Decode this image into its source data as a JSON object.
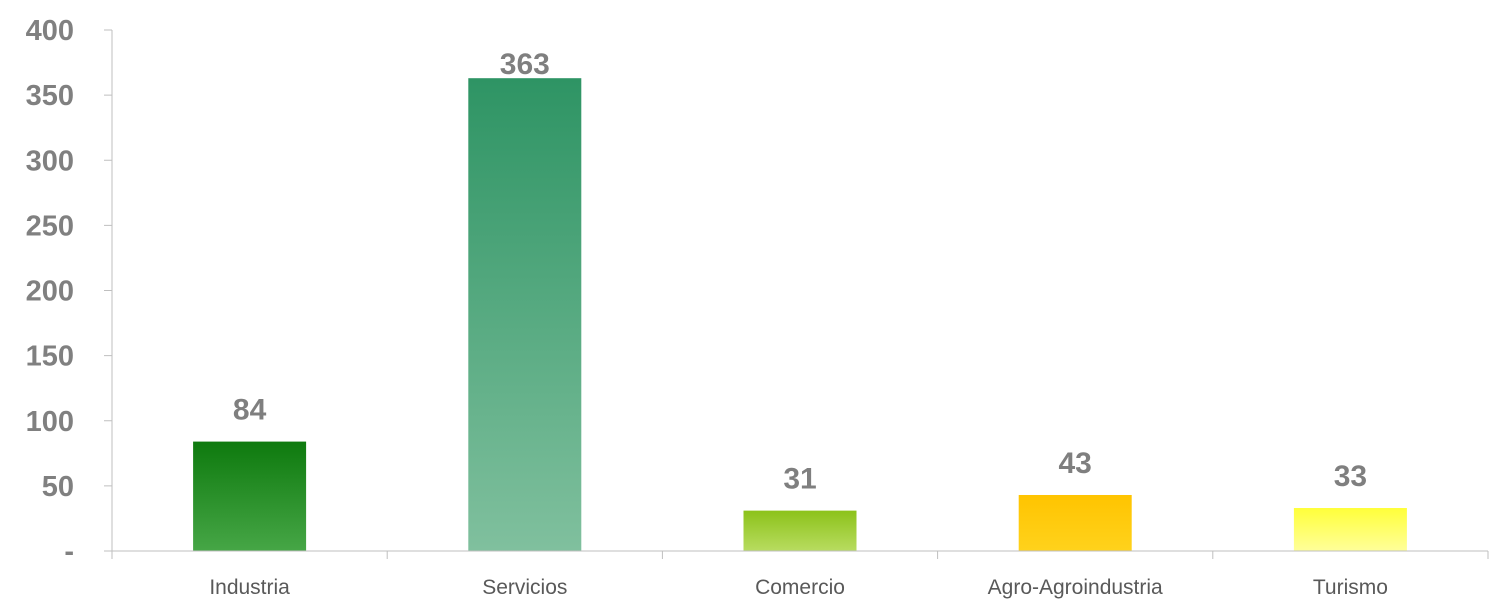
{
  "chart_data": {
    "type": "bar",
    "title": "",
    "xlabel": "",
    "ylabel": "",
    "categories": [
      "Industria",
      "Servicios",
      "Comercio",
      "Agro-Agroindustria",
      "Turismo"
    ],
    "values": [
      84,
      363,
      31,
      43,
      33
    ],
    "ylim": [
      0,
      400
    ],
    "yticks": [
      0,
      50,
      100,
      150,
      200,
      250,
      300,
      350,
      400
    ],
    "ytick_labels": [
      "-",
      "50",
      "100",
      "150",
      "200",
      "250",
      "300",
      "350",
      "400"
    ],
    "grid": false,
    "legend": "none",
    "bar_colors": [
      {
        "top": "#0e7a0e",
        "bottom": "#46a646"
      },
      {
        "top": "#2e9464",
        "bottom": "#80c09e"
      },
      {
        "top": "#8cc21a",
        "bottom": "#b8dc60"
      },
      {
        "top": "#ffc400",
        "bottom": "#ffd21c"
      },
      {
        "top": "#ffff3a",
        "bottom": "#ffff9a"
      }
    ]
  }
}
